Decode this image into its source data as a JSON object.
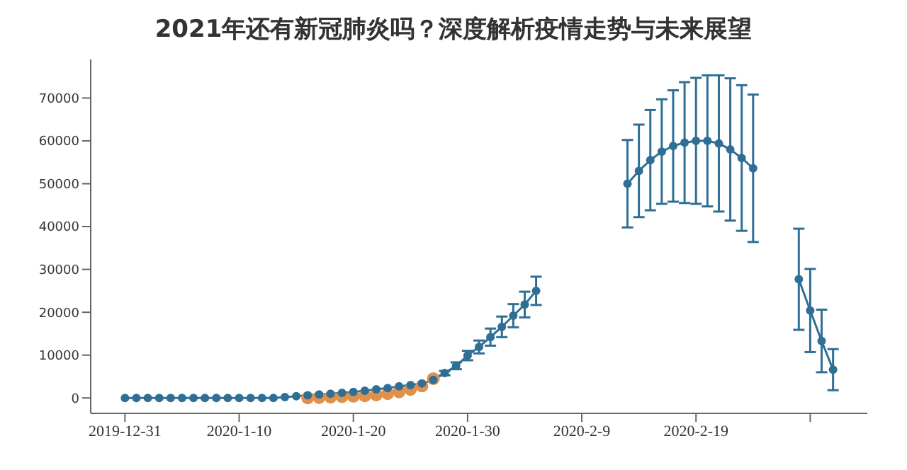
{
  "chart_data": {
    "type": "line",
    "title": "2021年还有新冠肺炎吗？深度解析疫情走势与未来展望",
    "x": [
      "2019-12-31",
      "2020-01-01",
      "2020-01-02",
      "2020-01-03",
      "2020-01-04",
      "2020-01-05",
      "2020-01-06",
      "2020-01-07",
      "2020-01-08",
      "2020-01-09",
      "2020-01-10",
      "2020-01-11",
      "2020-01-12",
      "2020-01-13",
      "2020-01-14",
      "2020-01-15",
      "2020-01-16",
      "2020-01-17",
      "2020-01-18",
      "2020-01-19",
      "2020-01-20",
      "2020-01-21",
      "2020-01-22",
      "2020-01-23",
      "2020-01-24",
      "2020-01-25",
      "2020-01-26",
      "2020-01-27",
      "2020-01-28",
      "2020-01-29",
      "2020-01-30",
      "2020-01-31",
      "2020-02-01",
      "2020-02-02",
      "2020-02-03",
      "2020-02-04",
      "2020-02-05",
      "2020-02-06",
      "2020-02-07",
      "2020-02-08",
      "2020-02-09",
      "2020-02-10",
      "2020-02-11",
      "2020-02-12",
      "2020-02-13",
      "2020-02-14",
      "2020-02-15",
      "2020-02-16",
      "2020-02-17",
      "2020-02-18",
      "2020-02-19",
      "2020-02-20",
      "2020-02-21",
      "2020-02-22",
      "2020-02-23",
      "2020-02-24",
      "2020-02-25",
      "2020-02-26",
      "2020-02-27",
      "2020-02-28",
      "2020-02-29",
      "2020-03-01",
      "2020-03-02"
    ],
    "series": [
      {
        "type": "scatter",
        "color": "#e0904a",
        "values": [
          null,
          null,
          null,
          null,
          null,
          null,
          null,
          null,
          null,
          null,
          null,
          null,
          null,
          null,
          null,
          null,
          0,
          100,
          200,
          300,
          400,
          500,
          700,
          1000,
          1400,
          2000,
          2800,
          4500,
          null,
          null,
          null,
          null,
          null,
          null,
          null,
          null,
          null,
          null,
          null,
          null,
          null,
          null,
          null,
          null,
          null,
          null,
          null,
          null,
          null,
          null,
          null,
          null,
          null,
          null,
          null,
          null,
          null,
          null,
          null,
          null,
          null,
          null,
          null
        ]
      },
      {
        "color": "#2f6f96",
        "values": [
          0,
          0,
          0,
          0,
          0,
          0,
          0,
          0,
          0,
          0,
          0,
          0,
          0,
          0,
          200,
          400,
          600,
          800,
          1000,
          1200,
          1400,
          1700,
          2000,
          2300,
          2700,
          3000,
          3400,
          4200,
          5800,
          7500,
          9900,
          11900,
          14200,
          16600,
          19200,
          21800,
          25000,
          null,
          null,
          null,
          null,
          null,
          null,
          null,
          50000,
          53000,
          55500,
          57500,
          58800,
          59600,
          60000,
          60000,
          59400,
          58000,
          56000,
          53600,
          null,
          null,
          null,
          27700,
          20400,
          13300,
          6600
        ],
        "errors": [
          null,
          null,
          null,
          null,
          null,
          null,
          null,
          null,
          null,
          null,
          null,
          null,
          null,
          null,
          null,
          null,
          null,
          null,
          null,
          null,
          null,
          null,
          null,
          null,
          null,
          null,
          null,
          null,
          500,
          800,
          1100,
          1500,
          2000,
          2400,
          2700,
          3000,
          3300,
          null,
          null,
          null,
          null,
          null,
          null,
          null,
          10200,
          10800,
          11700,
          12200,
          13000,
          14100,
          14700,
          15300,
          15900,
          16600,
          17000,
          17200,
          null,
          null,
          null,
          11800,
          9700,
          7300,
          4800
        ]
      }
    ],
    "xlim": [
      "2019-12-28",
      "2020-03-05"
    ],
    "xticks": [
      {
        "value": "2019-12-31",
        "label": "2019-12-31"
      },
      {
        "value": "2020-01-10",
        "label": "2020-1-10"
      },
      {
        "value": "2020-01-20",
        "label": "2020-1-20"
      },
      {
        "value": "2020-01-30",
        "label": "2020-1-30"
      },
      {
        "value": "2020-02-09",
        "label": "2020-2-9"
      },
      {
        "value": "2020-02-19",
        "label": "2020-2-19"
      },
      {
        "value": "2020-02-29",
        "label": null
      }
    ],
    "ylim": [
      -3600,
      79000
    ],
    "yticks": [
      0,
      10000,
      20000,
      30000,
      40000,
      50000,
      60000,
      70000
    ],
    "grid": false,
    "legend": false,
    "marker": "circle",
    "line_style": "solid"
  }
}
